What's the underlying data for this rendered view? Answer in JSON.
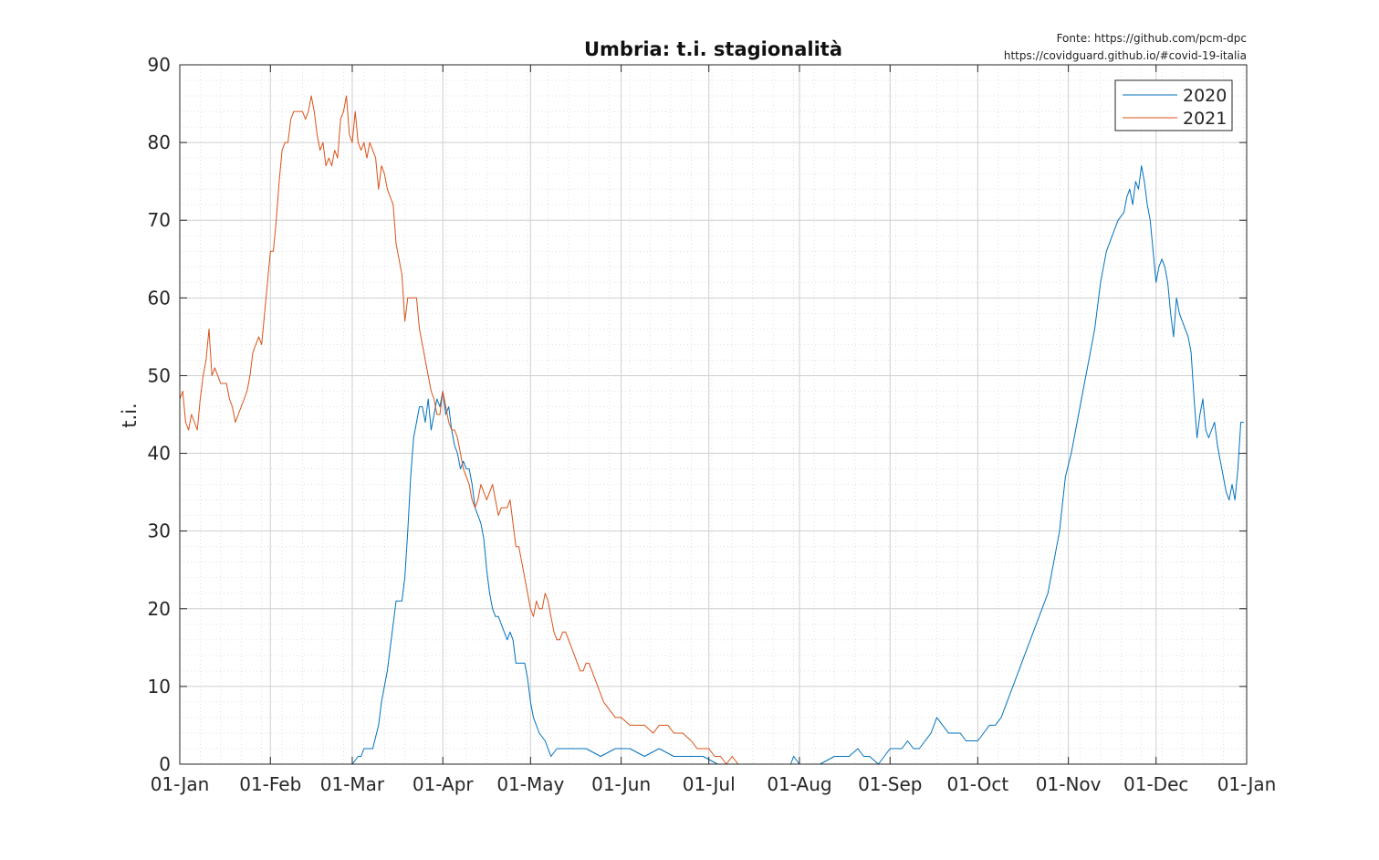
{
  "source": {
    "line1": "Fonte: https://github.com/pcm-dpc",
    "line2": "https://covidguard.github.io/#covid-19-italia"
  },
  "chart_data": {
    "type": "line",
    "title": "Umbria: t.i. stagionalità",
    "xlabel": "",
    "ylabel": "t.i.",
    "x_unit": "day of year",
    "xlim": [
      1,
      366
    ],
    "ylim": [
      0,
      90
    ],
    "x_ticks": [
      {
        "day": 1,
        "label": "01-Jan"
      },
      {
        "day": 32,
        "label": "01-Feb"
      },
      {
        "day": 60,
        "label": "01-Mar"
      },
      {
        "day": 91,
        "label": "01-Apr"
      },
      {
        "day": 121,
        "label": "01-May"
      },
      {
        "day": 152,
        "label": "01-Jun"
      },
      {
        "day": 182,
        "label": "01-Jul"
      },
      {
        "day": 213,
        "label": "01-Aug"
      },
      {
        "day": 244,
        "label": "01-Sep"
      },
      {
        "day": 274,
        "label": "01-Oct"
      },
      {
        "day": 305,
        "label": "01-Nov"
      },
      {
        "day": 335,
        "label": "01-Dec"
      },
      {
        "day": 366,
        "label": "01-Jan"
      }
    ],
    "y_ticks": [
      0,
      10,
      20,
      30,
      40,
      50,
      60,
      70,
      80,
      90
    ],
    "grid": "major+minor",
    "legend": "top-right",
    "series": [
      {
        "name": "2020",
        "color": "#0072BD",
        "x": [
          60,
          62,
          63,
          64,
          65,
          67,
          69,
          70,
          71,
          72,
          73,
          74,
          75,
          76,
          77,
          78,
          79,
          80,
          81,
          82,
          83,
          84,
          85,
          86,
          87,
          88,
          89,
          90,
          91,
          92,
          93,
          94,
          95,
          96,
          97,
          98,
          99,
          100,
          101,
          102,
          103,
          104,
          105,
          106,
          107,
          108,
          109,
          110,
          111,
          112,
          113,
          114,
          115,
          116,
          117,
          118,
          119,
          120,
          121,
          122,
          124,
          126,
          128,
          130,
          132,
          135,
          140,
          145,
          150,
          155,
          160,
          165,
          170,
          175,
          180,
          185,
          190,
          195,
          200,
          205,
          210,
          211,
          213,
          215,
          220,
          225,
          230,
          233,
          235,
          237,
          240,
          242,
          244,
          246,
          248,
          250,
          252,
          254,
          256,
          258,
          260,
          262,
          264,
          266,
          268,
          270,
          272,
          274,
          276,
          278,
          280,
          282,
          284,
          286,
          288,
          290,
          292,
          294,
          296,
          298,
          300,
          302,
          304,
          306,
          308,
          310,
          312,
          314,
          316,
          318,
          320,
          322,
          324,
          325,
          326,
          327,
          328,
          329,
          330,
          331,
          332,
          333,
          334,
          335,
          336,
          337,
          338,
          339,
          340,
          341,
          342,
          343,
          344,
          345,
          346,
          347,
          348,
          349,
          350,
          351,
          352,
          353,
          354,
          355,
          356,
          357,
          358,
          359,
          360,
          361,
          362,
          363,
          364,
          365
        ],
        "values": [
          0,
          1,
          1,
          2,
          2,
          2,
          5,
          8,
          10,
          12,
          15,
          18,
          21,
          21,
          21,
          24,
          30,
          37,
          42,
          44,
          46,
          46,
          44,
          47,
          43,
          45,
          47,
          46,
          48,
          45,
          46,
          43,
          41,
          40,
          38,
          39,
          38,
          38,
          36,
          33,
          32,
          31,
          29,
          25,
          22,
          20,
          19,
          19,
          18,
          17,
          16,
          17,
          16,
          13,
          13,
          13,
          13,
          11,
          8,
          6,
          4,
          3,
          1,
          2,
          2,
          2,
          2,
          1,
          2,
          2,
          1,
          2,
          1,
          1,
          1,
          0,
          0,
          0,
          0,
          0,
          0,
          1,
          0,
          0,
          0,
          1,
          1,
          2,
          1,
          1,
          0,
          1,
          2,
          2,
          2,
          3,
          2,
          2,
          3,
          4,
          6,
          5,
          4,
          4,
          4,
          3,
          3,
          3,
          4,
          5,
          5,
          6,
          8,
          10,
          12,
          14,
          16,
          18,
          20,
          22,
          26,
          30,
          37,
          40,
          44,
          48,
          52,
          56,
          62,
          66,
          68,
          70,
          71,
          73,
          74,
          72,
          75,
          74,
          77,
          75,
          72,
          70,
          66,
          62,
          64,
          65,
          64,
          62,
          58,
          55,
          60,
          58,
          57,
          56,
          55,
          53,
          47,
          42,
          45,
          47,
          43,
          42,
          43,
          44,
          41,
          39,
          37,
          35,
          34,
          36,
          34,
          38,
          44,
          44
        ]
      },
      {
        "name": "2021",
        "color": "#D95319",
        "x": [
          1,
          2,
          3,
          4,
          5,
          6,
          7,
          8,
          9,
          10,
          11,
          12,
          13,
          14,
          15,
          16,
          17,
          18,
          19,
          20,
          21,
          22,
          23,
          24,
          25,
          26,
          27,
          28,
          29,
          30,
          31,
          32,
          33,
          34,
          35,
          36,
          37,
          38,
          39,
          40,
          41,
          42,
          43,
          44,
          45,
          46,
          47,
          48,
          49,
          50,
          51,
          52,
          53,
          54,
          55,
          56,
          57,
          58,
          59,
          60,
          61,
          62,
          63,
          64,
          65,
          66,
          67,
          68,
          69,
          70,
          71,
          72,
          73,
          74,
          75,
          76,
          77,
          78,
          79,
          80,
          81,
          82,
          83,
          84,
          85,
          86,
          87,
          88,
          89,
          90,
          91,
          92,
          93,
          94,
          95,
          96,
          97,
          98,
          99,
          100,
          101,
          102,
          103,
          104,
          105,
          106,
          107,
          108,
          109,
          110,
          111,
          112,
          113,
          114,
          115,
          116,
          117,
          118,
          119,
          120,
          121,
          122,
          123,
          124,
          125,
          126,
          127,
          128,
          129,
          130,
          131,
          132,
          133,
          134,
          135,
          136,
          137,
          138,
          139,
          140,
          141,
          142,
          144,
          146,
          148,
          150,
          152,
          155,
          158,
          160,
          163,
          165,
          168,
          170,
          173,
          176,
          178,
          180,
          182,
          184,
          186,
          188,
          190,
          192,
          195,
          200
        ],
        "values": [
          47,
          48,
          44,
          43,
          45,
          44,
          43,
          47,
          50,
          52,
          56,
          50,
          51,
          50,
          49,
          49,
          49,
          47,
          46,
          44,
          45,
          46,
          47,
          48,
          50,
          53,
          54,
          55,
          54,
          58,
          62,
          66,
          66,
          70,
          75,
          79,
          80,
          80,
          83,
          84,
          84,
          84,
          84,
          83,
          84,
          86,
          84,
          81,
          79,
          80,
          77,
          78,
          77,
          79,
          78,
          83,
          84,
          86,
          81,
          80,
          84,
          80,
          79,
          80,
          78,
          80,
          79,
          78,
          74,
          77,
          76,
          74,
          73,
          72,
          67,
          65,
          63,
          57,
          60,
          60,
          60,
          60,
          56,
          54,
          52,
          50,
          48,
          47,
          45,
          45,
          48,
          46,
          44,
          43,
          43,
          42,
          40,
          38,
          37,
          36,
          34,
          33,
          34,
          36,
          35,
          34,
          35,
          36,
          34,
          32,
          33,
          33,
          33,
          34,
          31,
          28,
          28,
          26,
          24,
          22,
          20,
          19,
          21,
          20,
          20,
          22,
          21,
          19,
          17,
          16,
          16,
          17,
          17,
          16,
          15,
          14,
          13,
          12,
          12,
          13,
          13,
          12,
          10,
          8,
          7,
          6,
          6,
          5,
          5,
          5,
          4,
          5,
          5,
          4,
          4,
          3,
          2,
          2,
          2,
          1,
          1,
          0,
          1,
          0,
          0,
          0
        ]
      }
    ]
  }
}
